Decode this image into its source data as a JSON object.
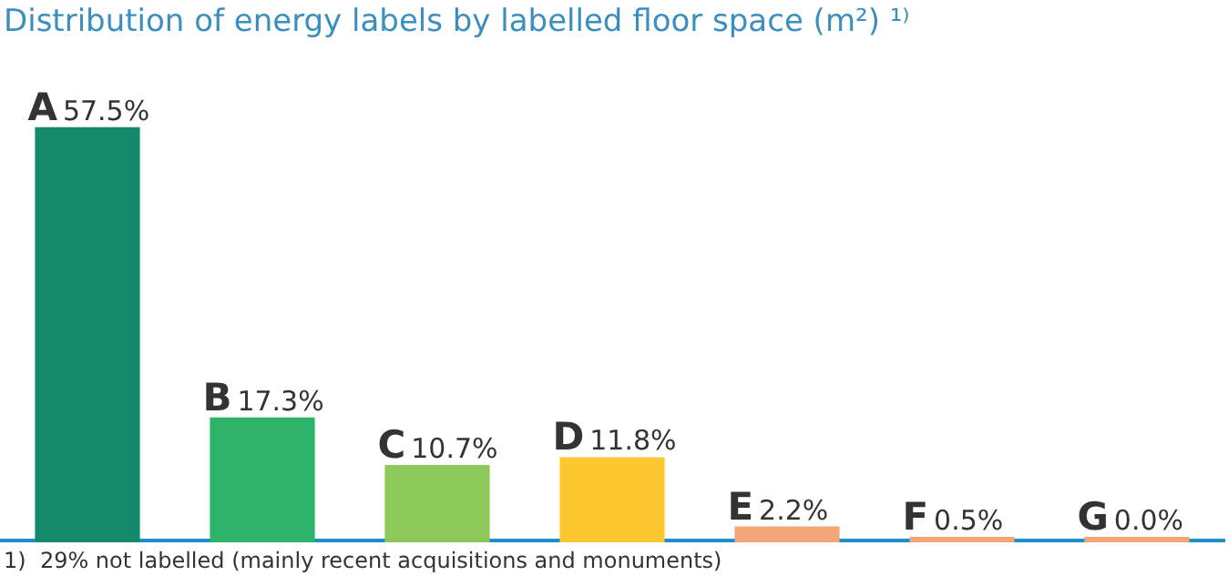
{
  "chart_data": {
    "type": "bar",
    "title": "Distribution of energy labels by labelled floor space (m²) ¹⁾",
    "categories": [
      "A",
      "B",
      "C",
      "D",
      "E",
      "F",
      "G"
    ],
    "values": [
      57.5,
      17.3,
      10.7,
      11.8,
      2.2,
      0.5,
      0.0
    ],
    "value_labels": [
      "57.5%",
      "17.3%",
      "10.7%",
      "11.8%",
      "2.2%",
      "0.5%",
      "0.0%"
    ],
    "colors": [
      "#138a6a",
      "#2db36a",
      "#8cc85a",
      "#fdc82f",
      "#f4a57a",
      "#f4a57a",
      "#f4a57a"
    ],
    "annotations": [
      "1)  29% not labelled (mainly recent acquisitions and monuments)"
    ],
    "grid": false,
    "legend": false
  }
}
